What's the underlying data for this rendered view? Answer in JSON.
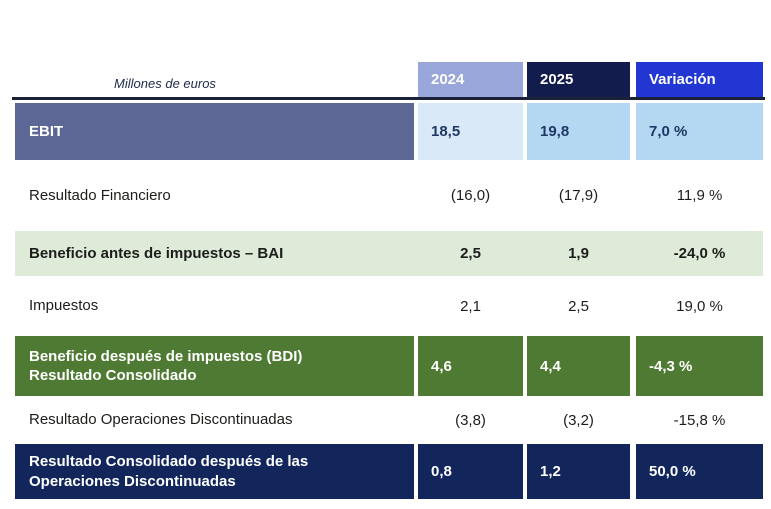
{
  "caption": "Millones de euros",
  "table": {
    "columns": [
      "2024",
      "2025",
      "Variación"
    ],
    "rows": [
      {
        "label": "EBIT",
        "v2024": "18,5",
        "v2025": "19,8",
        "variacion": "7,0 %"
      },
      {
        "label": "Resultado Financiero",
        "v2024": "(16,0)",
        "v2025": "(17,9)",
        "variacion": "11,9 %"
      },
      {
        "label": "Beneficio antes de impuestos – BAI",
        "v2024": "2,5",
        "v2025": "1,9",
        "variacion": "-24,0 %"
      },
      {
        "label": "Impuestos",
        "v2024": "2,1",
        "v2025": "2,5",
        "variacion": "19,0 %"
      },
      {
        "label": "Beneficio después de impuestos (BDI)\nResultado Consolidado",
        "v2024": "4,6",
        "v2025": "4,4",
        "variacion": "-4,3 %"
      },
      {
        "label": "Resultado Operaciones Discontinuadas",
        "v2024": "(3,8)",
        "v2025": "(3,2)",
        "variacion": "-15,8 %"
      },
      {
        "label": "Resultado Consolidado después de las\nOperaciones Discontinuadas",
        "v2024": "0,8",
        "v2025": "1,2",
        "variacion": "50,0 %"
      }
    ]
  },
  "colors": {
    "header_2024_bg": "#99a6da",
    "header_2025_bg": "#121c4d",
    "header_variacion_bg": "#2236d3",
    "ebit_label_bg": "#5c6796",
    "ebit_value_2024_bg": "#d9e9f8",
    "ebit_value_bg": "#b4d8f1",
    "ebit_value_text": "#1f3864",
    "bai_row_bg": "#deebd8",
    "bdi_row_bg": "#4e7a33",
    "final_row_bg": "#12265c",
    "rule_line": "#1b2139",
    "body_text": "#1d1d1b"
  },
  "chart_data": {
    "type": "table",
    "title": "",
    "unit_note": "Millones de euros",
    "columns": [
      "",
      "2024",
      "2025",
      "Variación"
    ],
    "rows": [
      [
        "EBIT",
        "18,5",
        "19,8",
        "7,0 %"
      ],
      [
        "Resultado Financiero",
        "(16,0)",
        "(17,9)",
        "11,9 %"
      ],
      [
        "Beneficio antes de impuestos – BAI",
        "2,5",
        "1,9",
        "-24,0 %"
      ],
      [
        "Impuestos",
        "2,1",
        "2,5",
        "19,0 %"
      ],
      [
        "Beneficio después de impuestos (BDI) Resultado Consolidado",
        "4,6",
        "4,4",
        "-4,3 %"
      ],
      [
        "Resultado Operaciones Discontinuadas",
        "(3,8)",
        "(3,2)",
        "-15,8 %"
      ],
      [
        "Resultado Consolidado después de las Operaciones Discontinuadas",
        "0,8",
        "1,2",
        "50,0 %"
      ]
    ],
    "numeric_rows": [
      {
        "label": "EBIT",
        "y2024": 18.5,
        "y2025": 19.8,
        "variacion_pct": 7.0
      },
      {
        "label": "Resultado Financiero",
        "y2024": -16.0,
        "y2025": -17.9,
        "variacion_pct": 11.9
      },
      {
        "label": "Beneficio antes de impuestos – BAI",
        "y2024": 2.5,
        "y2025": 1.9,
        "variacion_pct": -24.0
      },
      {
        "label": "Impuestos",
        "y2024": 2.1,
        "y2025": 2.5,
        "variacion_pct": 19.0
      },
      {
        "label": "Beneficio después de impuestos (BDI) Resultado Consolidado",
        "y2024": 4.6,
        "y2025": 4.4,
        "variacion_pct": -4.3
      },
      {
        "label": "Resultado Operaciones Discontinuadas",
        "y2024": -3.8,
        "y2025": -3.2,
        "variacion_pct": -15.8
      },
      {
        "label": "Resultado Consolidado después de las Operaciones Discontinuadas",
        "y2024": 0.8,
        "y2025": 1.2,
        "variacion_pct": 50.0
      }
    ]
  }
}
